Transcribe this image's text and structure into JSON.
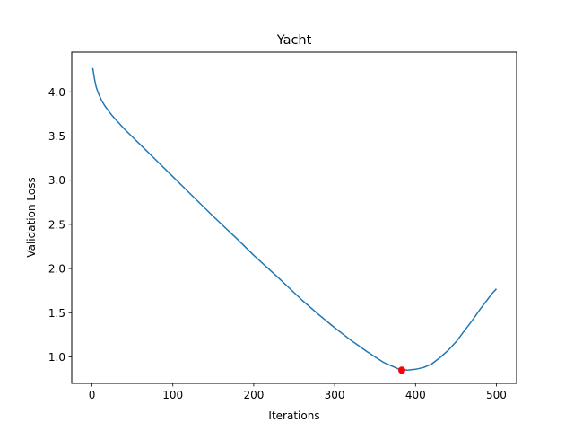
{
  "chart_data": {
    "type": "line",
    "title": "Yacht",
    "xlabel": "Iterations",
    "ylabel": "Validation Loss",
    "xlim": [
      -25,
      525
    ],
    "ylim": [
      0.7,
      4.45
    ],
    "xticks": [
      0,
      100,
      200,
      300,
      400,
      500
    ],
    "yticks": [
      1.0,
      1.5,
      2.0,
      2.5,
      3.0,
      3.5,
      4.0
    ],
    "grid": false,
    "legend": "none",
    "series": [
      {
        "color": "#1f77b4",
        "x": [
          1,
          3,
          5,
          8,
          12,
          16,
          20,
          25,
          30,
          40,
          50,
          60,
          80,
          100,
          120,
          150,
          180,
          200,
          230,
          260,
          280,
          300,
          320,
          340,
          360,
          380,
          390,
          400,
          410,
          420,
          430,
          440,
          450,
          460,
          470,
          480,
          490,
          495,
          500
        ],
        "y": [
          4.27,
          4.15,
          4.06,
          3.98,
          3.9,
          3.84,
          3.79,
          3.73,
          3.68,
          3.58,
          3.49,
          3.4,
          3.22,
          3.04,
          2.86,
          2.59,
          2.33,
          2.15,
          1.9,
          1.64,
          1.48,
          1.33,
          1.19,
          1.06,
          0.94,
          0.86,
          0.85,
          0.86,
          0.88,
          0.92,
          0.99,
          1.07,
          1.17,
          1.29,
          1.41,
          1.54,
          1.66,
          1.72,
          1.77
        ]
      }
    ],
    "marker": {
      "x": 383,
      "y": 0.85,
      "color": "#ff0000"
    }
  }
}
